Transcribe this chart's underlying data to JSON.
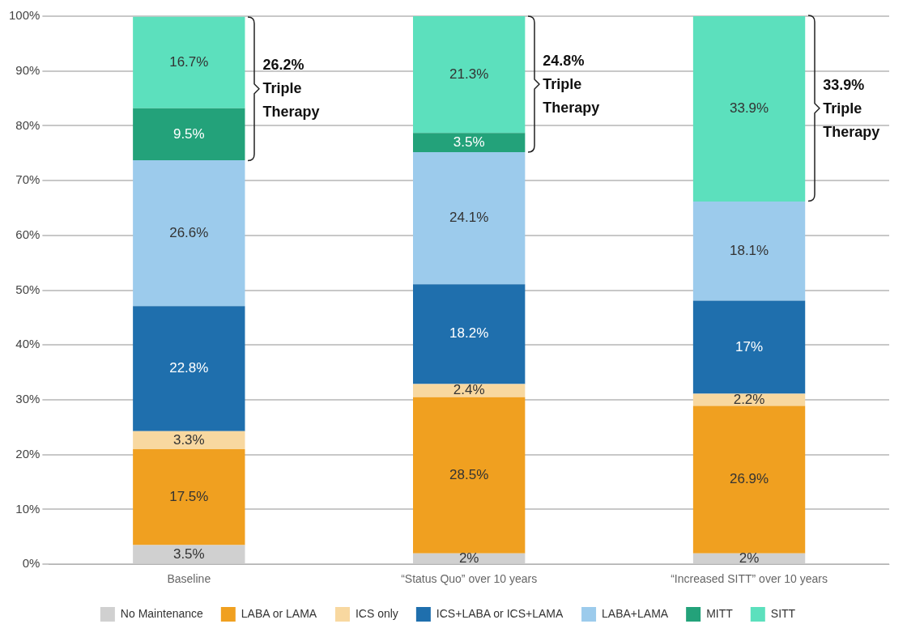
{
  "chart_data": {
    "type": "bar",
    "stacked": true,
    "categories": [
      "Baseline",
      "“Status Quo” over 10 years",
      "“Increased SITT” over 10 years"
    ],
    "series": [
      {
        "name": "No Maintenance",
        "color": "#d0d0d0",
        "values": [
          3.5,
          2,
          2
        ],
        "value_labels": [
          "3.5%",
          "2%",
          "2%"
        ]
      },
      {
        "name": "LABA or LAMA",
        "color": "#f0a020",
        "values": [
          17.5,
          28.5,
          26.9
        ],
        "value_labels": [
          "17.5%",
          "28.5%",
          "26.9%"
        ]
      },
      {
        "name": "ICS only",
        "color": "#f8d8a0",
        "values": [
          3.3,
          2.4,
          2.2
        ],
        "value_labels": [
          "3.3%",
          "2.4%",
          "2.2%"
        ]
      },
      {
        "name": "ICS+LABA or ICS+LAMA",
        "color": "#1f6fad",
        "values": [
          22.8,
          18.2,
          17
        ],
        "value_labels": [
          "22.8%",
          "18.2%",
          "17%"
        ]
      },
      {
        "name": "LABA+LAMA",
        "color": "#9ccbec",
        "values": [
          26.6,
          24.1,
          18.1
        ],
        "value_labels": [
          "26.6%",
          "24.1%",
          "18.1%"
        ]
      },
      {
        "name": "MITT",
        "color": "#23a27a",
        "values": [
          9.5,
          3.5,
          null
        ],
        "value_labels": [
          "9.5%",
          "3.5%",
          null
        ]
      },
      {
        "name": "SITT",
        "color": "#5ce0bd",
        "values": [
          16.7,
          21.3,
          33.9
        ],
        "value_labels": [
          "16.7%",
          "21.3%",
          "33.9%"
        ]
      }
    ],
    "ylim": [
      0,
      100
    ],
    "yticks": [
      {
        "value": 0,
        "label": "0%"
      },
      {
        "value": 10,
        "label": "10%"
      },
      {
        "value": 20,
        "label": "20%"
      },
      {
        "value": 30,
        "label": "30%"
      },
      {
        "value": 40,
        "label": "40%"
      },
      {
        "value": 50,
        "label": "50%"
      },
      {
        "value": 60,
        "label": "60%"
      },
      {
        "value": 70,
        "label": "70%"
      },
      {
        "value": 80,
        "label": "80%"
      },
      {
        "value": 90,
        "label": "90%"
      },
      {
        "value": 100,
        "label": "100%"
      }
    ],
    "grid": "y",
    "legend": "bottom",
    "annotations": [
      "26.2% Triple Therapy",
      "24.8% Triple Therapy",
      "33.9% Triple Therapy"
    ]
  }
}
